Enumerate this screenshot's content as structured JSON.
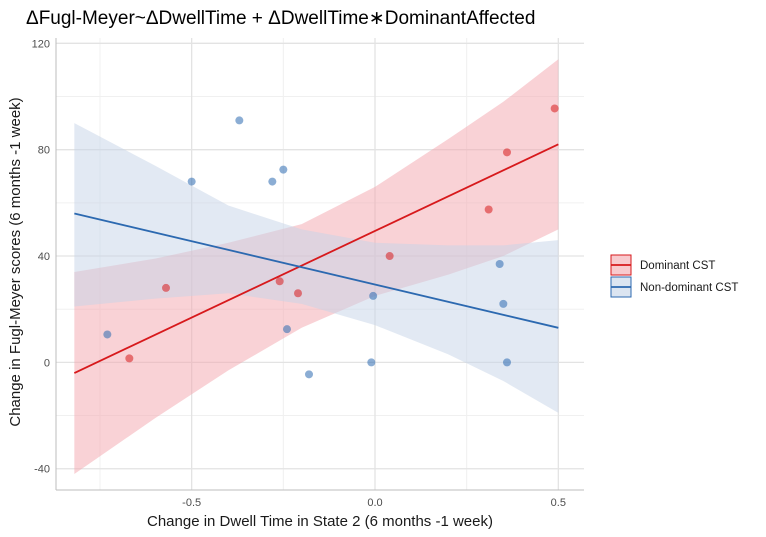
{
  "chart_data": {
    "type": "scatter",
    "title": "ΔFugl-Meyer~ΔDwellTime + ΔDwellTime∗DominantAffected",
    "xlabel": "Change in Dwell Time in State 2 (6 months -1 week)",
    "ylabel": "Change in Fugl-Meyer scores (6 months -1 week)",
    "xlim": [
      -0.87,
      0.57
    ],
    "ylim": [
      -48,
      122
    ],
    "x_ticks": [
      -0.5,
      0.0,
      0.5
    ],
    "x_tick_labels": [
      "-0.5",
      "0.0",
      "0.5"
    ],
    "y_ticks": [
      -40,
      0,
      40,
      80,
      120
    ],
    "y_tick_labels": [
      "-40",
      "0",
      "40",
      "80",
      "120"
    ],
    "grid": true,
    "legend_position": "right",
    "series": [
      {
        "name": "Dominant CST",
        "color": "#d7191c",
        "fill": "#f4a6ad",
        "points": [
          {
            "x": -0.67,
            "y": 1.5
          },
          {
            "x": -0.57,
            "y": 28
          },
          {
            "x": -0.26,
            "y": 30.5
          },
          {
            "x": -0.21,
            "y": 26
          },
          {
            "x": 0.04,
            "y": 40
          },
          {
            "x": 0.31,
            "y": 57.5
          },
          {
            "x": 0.36,
            "y": 79
          },
          {
            "x": 0.49,
            "y": 95.5
          }
        ],
        "fit": {
          "x": [
            -0.82,
            0.5
          ],
          "y": [
            -4,
            82
          ]
        },
        "band": [
          {
            "x": -0.82,
            "lo": -42,
            "hi": 34
          },
          {
            "x": -0.6,
            "lo": -21,
            "hi": 39
          },
          {
            "x": -0.4,
            "lo": -3,
            "hi": 45
          },
          {
            "x": -0.2,
            "lo": 13,
            "hi": 52
          },
          {
            "x": 0.0,
            "lo": 25,
            "hi": 66
          },
          {
            "x": 0.2,
            "lo": 33,
            "hi": 84
          },
          {
            "x": 0.35,
            "lo": 40,
            "hi": 98
          },
          {
            "x": 0.5,
            "lo": 50,
            "hi": 114
          }
        ]
      },
      {
        "name": "Non-dominant CST",
        "color": "#2c69b0",
        "fill": "#c5d3e8",
        "points": [
          {
            "x": -0.73,
            "y": 10.5
          },
          {
            "x": -0.5,
            "y": 68
          },
          {
            "x": -0.37,
            "y": 91
          },
          {
            "x": -0.28,
            "y": 68
          },
          {
            "x": -0.25,
            "y": 72.5
          },
          {
            "x": -0.24,
            "y": 12.5
          },
          {
            "x": -0.18,
            "y": -4.5
          },
          {
            "x": -0.01,
            "y": 0
          },
          {
            "x": -0.005,
            "y": 25
          },
          {
            "x": 0.34,
            "y": 37
          },
          {
            "x": 0.35,
            "y": 22
          },
          {
            "x": 0.36,
            "y": 0
          }
        ],
        "fit": {
          "x": [
            -0.82,
            0.5
          ],
          "y": [
            56,
            13
          ]
        },
        "band": [
          {
            "x": -0.82,
            "lo": 21,
            "hi": 90
          },
          {
            "x": -0.6,
            "lo": 24,
            "hi": 74
          },
          {
            "x": -0.4,
            "lo": 26,
            "hi": 59
          },
          {
            "x": -0.2,
            "lo": 22,
            "hi": 50
          },
          {
            "x": 0.0,
            "lo": 14,
            "hi": 45
          },
          {
            "x": 0.2,
            "lo": 3,
            "hi": 44
          },
          {
            "x": 0.35,
            "lo": -7,
            "hi": 44
          },
          {
            "x": 0.5,
            "lo": -19,
            "hi": 46
          }
        ]
      }
    ]
  }
}
